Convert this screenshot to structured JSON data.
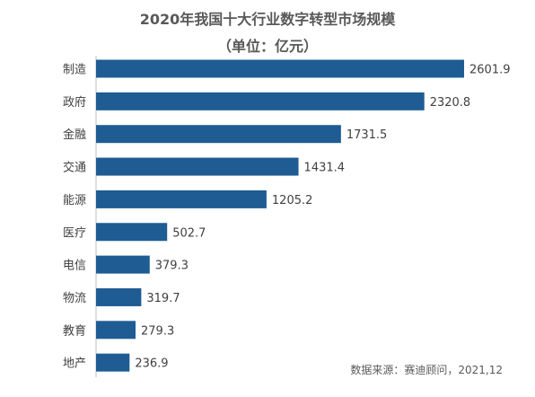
{
  "chart_data": {
    "type": "bar",
    "orientation": "horizontal",
    "title": "2020年我国十大行业数字转型市场规模",
    "subtitle": "（单位：亿元）",
    "categories": [
      "制造",
      "政府",
      "金融",
      "交通",
      "能源",
      "医疗",
      "电信",
      "物流",
      "教育",
      "地产"
    ],
    "values": [
      2601.9,
      2320.8,
      1731.5,
      1431.4,
      1205.2,
      502.7,
      379.3,
      319.7,
      279.3,
      236.9
    ],
    "value_labels": [
      "2601.9",
      "2320.8",
      "1731.5",
      "1431.4",
      "1205.2",
      "502.7",
      "379.3",
      "319.7",
      "279.3",
      "236.9"
    ],
    "xlim": [
      0,
      2780
    ],
    "grid": false,
    "legend": "none",
    "bar_color": "#1f5c93",
    "source": "数据来源：赛迪顾问，2021,12"
  }
}
